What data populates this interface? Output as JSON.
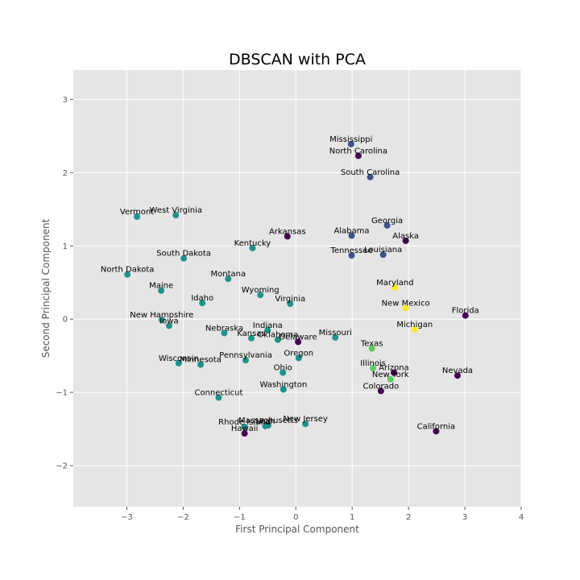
{
  "chart_data": {
    "type": "scatter",
    "title": "DBSCAN with PCA",
    "xlabel": "First Principal Component",
    "ylabel": "Second Principal Component",
    "xlim": [
      -3.95,
      4.0
    ],
    "ylim": [
      -2.56,
      3.4
    ],
    "xticks": [
      -3,
      -2,
      -1,
      0,
      1,
      2,
      3,
      4
    ],
    "yticks": [
      -2,
      -1,
      0,
      1,
      2,
      3
    ],
    "xtick_labels": [
      "−3",
      "−2",
      "−1",
      "0",
      "1",
      "2",
      "3",
      "4"
    ],
    "ytick_labels": [
      "−2",
      "−1",
      "0",
      "1",
      "2",
      "3"
    ],
    "grid": true,
    "colors": {
      "background": "#e5e5e5",
      "grid": "#ffffff",
      "noise": "#440154",
      "cluster0": "#3b528b",
      "cluster1": "#21918c",
      "cluster2": "#5ec962",
      "cluster3": "#fde725"
    },
    "points": [
      {
        "label": "Mississippi",
        "x": 0.98,
        "y": 2.39,
        "cluster": "cluster0"
      },
      {
        "label": "North Carolina",
        "x": 1.11,
        "y": 2.23,
        "cluster": "noise"
      },
      {
        "label": "South Carolina",
        "x": 1.32,
        "y": 1.94,
        "cluster": "cluster0"
      },
      {
        "label": "Vermont",
        "x": -2.82,
        "y": 1.4,
        "cluster": "cluster1"
      },
      {
        "label": "West Virginia",
        "x": -2.13,
        "y": 1.42,
        "cluster": "cluster1"
      },
      {
        "label": "Georgia",
        "x": 1.62,
        "y": 1.28,
        "cluster": "cluster0"
      },
      {
        "label": "Arkansas",
        "x": -0.15,
        "y": 1.13,
        "cluster": "noise"
      },
      {
        "label": "Alabama",
        "x": 0.99,
        "y": 1.14,
        "cluster": "cluster0"
      },
      {
        "label": "Alaska",
        "x": 1.95,
        "y": 1.07,
        "cluster": "noise"
      },
      {
        "label": "Kentucky",
        "x": -0.77,
        "y": 0.97,
        "cluster": "cluster1"
      },
      {
        "label": "Tennessee",
        "x": 0.99,
        "y": 0.87,
        "cluster": "cluster0"
      },
      {
        "label": "Louisiana",
        "x": 1.55,
        "y": 0.88,
        "cluster": "cluster0"
      },
      {
        "label": "South Dakota",
        "x": -1.99,
        "y": 0.83,
        "cluster": "cluster1"
      },
      {
        "label": "North Dakota",
        "x": -2.99,
        "y": 0.61,
        "cluster": "cluster1"
      },
      {
        "label": "Montana",
        "x": -1.2,
        "y": 0.55,
        "cluster": "cluster1"
      },
      {
        "label": "Maryland",
        "x": 1.76,
        "y": 0.43,
        "cluster": "cluster3"
      },
      {
        "label": "Maine",
        "x": -2.39,
        "y": 0.39,
        "cluster": "cluster1"
      },
      {
        "label": "Wyoming",
        "x": -0.63,
        "y": 0.33,
        "cluster": "cluster1"
      },
      {
        "label": "Idaho",
        "x": -1.66,
        "y": 0.22,
        "cluster": "cluster1"
      },
      {
        "label": "Virginia",
        "x": -0.1,
        "y": 0.21,
        "cluster": "cluster1"
      },
      {
        "label": "New Mexico",
        "x": 1.95,
        "y": 0.15,
        "cluster": "cluster3"
      },
      {
        "label": "Florida",
        "x": 3.01,
        "y": 0.05,
        "cluster": "noise"
      },
      {
        "label": "New Hampshire",
        "x": -2.38,
        "y": -0.01,
        "cluster": "cluster1"
      },
      {
        "label": "Iowa",
        "x": -2.25,
        "y": -0.09,
        "cluster": "cluster1"
      },
      {
        "label": "Michigan",
        "x": 2.11,
        "y": -0.14,
        "cluster": "cluster3"
      },
      {
        "label": "Indiana",
        "x": -0.5,
        "y": -0.15,
        "cluster": "cluster1"
      },
      {
        "label": "Nebraska",
        "x": -1.27,
        "y": -0.19,
        "cluster": "cluster1"
      },
      {
        "label": "Kansas",
        "x": -0.79,
        "y": -0.26,
        "cluster": "cluster1"
      },
      {
        "label": "Missouri",
        "x": 0.7,
        "y": -0.25,
        "cluster": "cluster1"
      },
      {
        "label": "Oklahoma",
        "x": -0.32,
        "y": -0.28,
        "cluster": "cluster1"
      },
      {
        "label": "Delaware",
        "x": 0.04,
        "y": -0.31,
        "cluster": "noise"
      },
      {
        "label": "Texas",
        "x": 1.35,
        "y": -0.4,
        "cluster": "cluster2"
      },
      {
        "label": "Oregon",
        "x": 0.05,
        "y": -0.53,
        "cluster": "cluster1"
      },
      {
        "label": "Pennsylvania",
        "x": -0.89,
        "y": -0.56,
        "cluster": "cluster1"
      },
      {
        "label": "Wisconsin",
        "x": -2.08,
        "y": -0.6,
        "cluster": "cluster1"
      },
      {
        "label": "Minnesota",
        "x": -1.69,
        "y": -0.62,
        "cluster": "cluster1"
      },
      {
        "label": "Illinois",
        "x": 1.37,
        "y": -0.67,
        "cluster": "cluster2"
      },
      {
        "label": "Ohio",
        "x": -0.23,
        "y": -0.73,
        "cluster": "cluster1"
      },
      {
        "label": "Arizona",
        "x": 1.74,
        "y": -0.73,
        "cluster": "noise"
      },
      {
        "label": "Nevada",
        "x": 2.87,
        "y": -0.77,
        "cluster": "noise"
      },
      {
        "label": "New York",
        "x": 1.68,
        "y": -0.82,
        "cluster": "cluster2"
      },
      {
        "label": "Washington",
        "x": -0.22,
        "y": -0.96,
        "cluster": "cluster1"
      },
      {
        "label": "Colorado",
        "x": 1.51,
        "y": -0.98,
        "cluster": "noise"
      },
      {
        "label": "Connecticut",
        "x": -1.37,
        "y": -1.07,
        "cluster": "cluster1"
      },
      {
        "label": "New Jersey",
        "x": 0.17,
        "y": -1.43,
        "cluster": "cluster1"
      },
      {
        "label": "Massachusetts",
        "x": -0.49,
        "y": -1.45,
        "cluster": "cluster1"
      },
      {
        "label": "Utah",
        "x": -0.54,
        "y": -1.46,
        "cluster": "cluster1"
      },
      {
        "label": "Rhode Island",
        "x": -0.91,
        "y": -1.47,
        "cluster": "cluster1"
      },
      {
        "label": "Hawaii",
        "x": -0.91,
        "y": -1.56,
        "cluster": "noise"
      },
      {
        "label": "California",
        "x": 2.49,
        "y": -1.53,
        "cluster": "noise"
      }
    ]
  }
}
